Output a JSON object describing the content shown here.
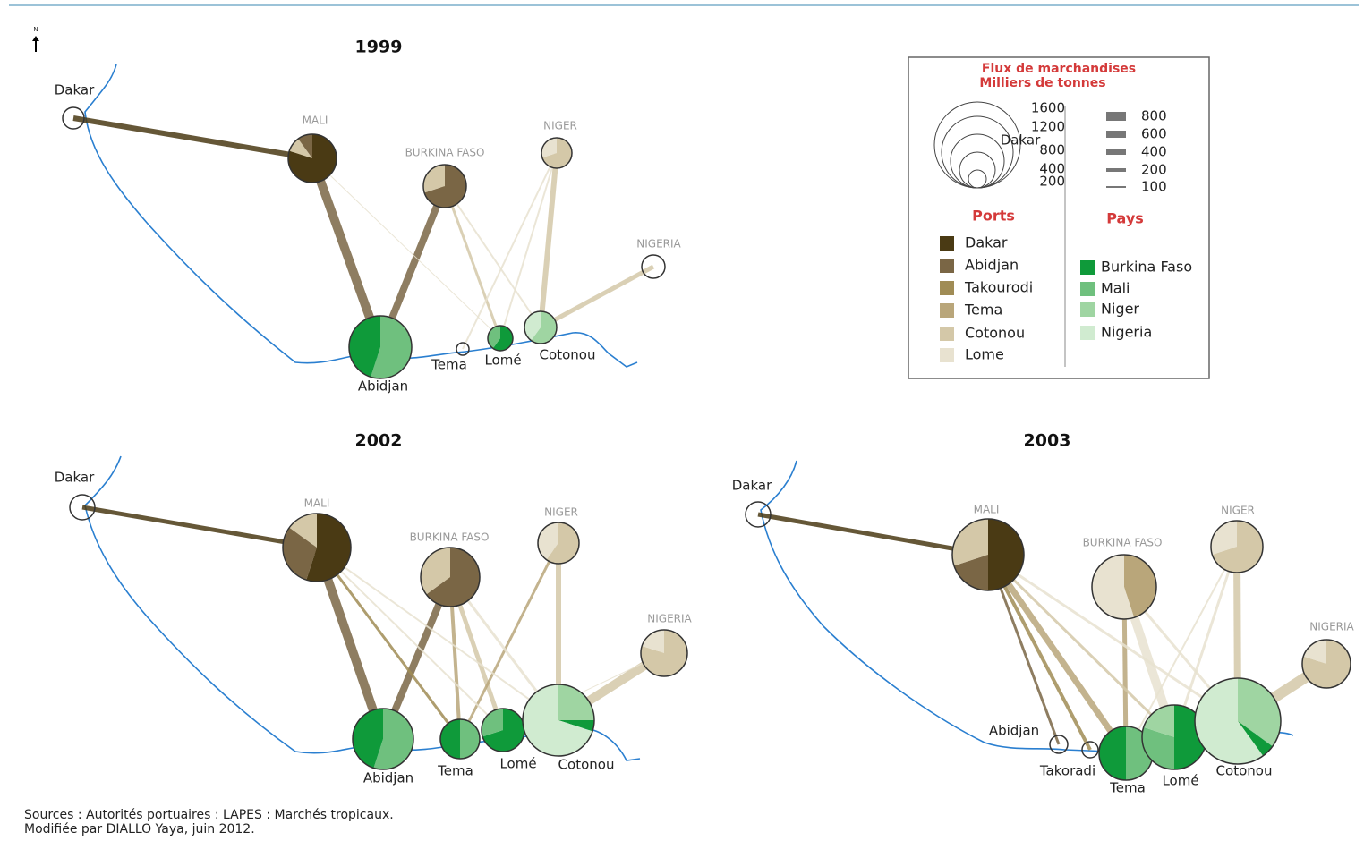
{
  "north": "N",
  "maps": [
    {
      "title": "1999",
      "labels": [
        "Dakar",
        "MALI",
        "BURKINA FASO",
        "NIGER",
        "NIGERIA",
        "Abidjan",
        "Tema",
        "Lomé",
        "Cotonou"
      ]
    },
    {
      "title": "2002",
      "labels": [
        "Dakar",
        "MALI",
        "BURKINA FASO",
        "NIGER",
        "NIGERIA",
        "Abidjan",
        "Tema",
        "Lomé",
        "Cotonou"
      ]
    },
    {
      "title": "2003",
      "labels": [
        "Dakar",
        "MALI",
        "BURKINA FASO",
        "NIGER",
        "NIGERIA",
        "Abidjan",
        "Takoradi",
        "Tema",
        "Lomé",
        "Cotonou"
      ]
    }
  ],
  "legend": {
    "title": [
      "Flux de marchandises",
      "Milliers de tonnes"
    ],
    "size_scale": [
      "1600",
      "1200",
      "800",
      "400",
      "200"
    ],
    "size_example": "Dakar",
    "width_scale": [
      "800",
      "600",
      "400",
      "200",
      "100"
    ],
    "ports_title": "Ports",
    "ports": [
      {
        "name": "Dakar",
        "color": "#4a3a14"
      },
      {
        "name": "Abidjan",
        "color": "#7a6645"
      },
      {
        "name": "Takourodi",
        "color": "#a08c55"
      },
      {
        "name": "Tema",
        "color": "#b9a67a"
      },
      {
        "name": "Cotonou",
        "color": "#d4c8a8"
      },
      {
        "name": "Lome",
        "color": "#e8e2d0"
      }
    ],
    "pays_title": "Pays",
    "pays": [
      {
        "name": "Burkina Faso",
        "color": "#0f9a3a"
      },
      {
        "name": "Mali",
        "color": "#6fc07e"
      },
      {
        "name": "Niger",
        "color": "#9fd5a2"
      },
      {
        "name": "Nigeria",
        "color": "#d0ebd0"
      }
    ]
  },
  "sources": [
    "Sources : Autorités portuaires : LAPES : Marchés tropicaux.",
    "Modifiée par DIALLO Yaya, juin 2012."
  ]
}
